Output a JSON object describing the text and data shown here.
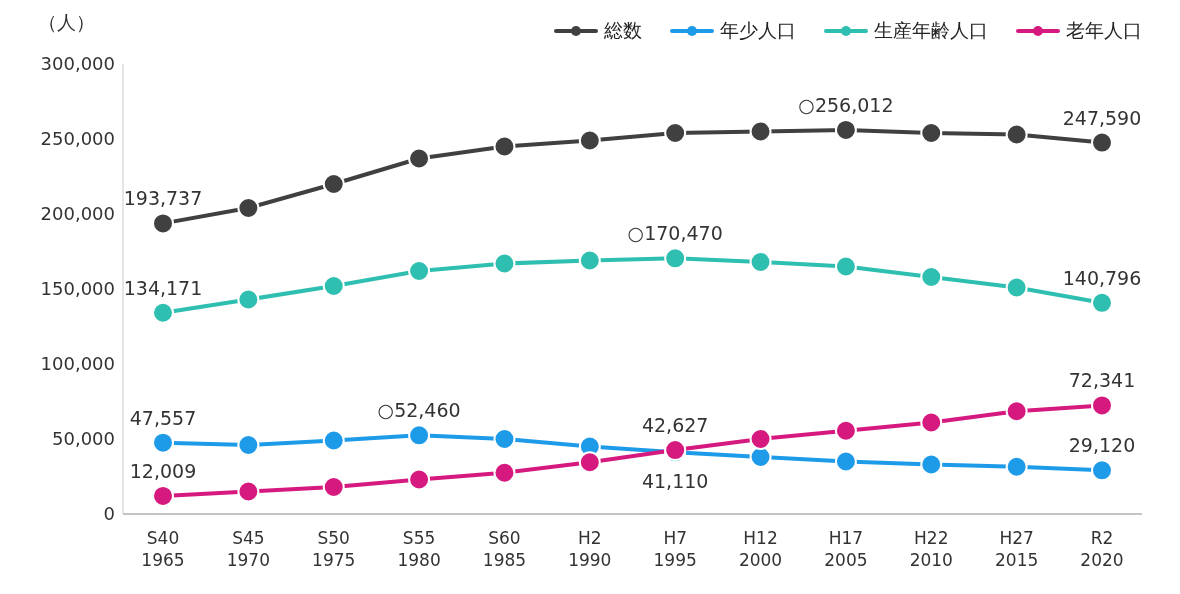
{
  "chart_data": {
    "type": "line",
    "ylabel": "（人）",
    "categories": [
      "S40\n1965",
      "S45\n1970",
      "S50\n1975",
      "S55\n1980",
      "S60\n1985",
      "H2\n1990",
      "H7\n1995",
      "H12\n2000",
      "H17\n2005",
      "H22\n2010",
      "H27\n2015",
      "R2\n2020"
    ],
    "series": [
      {
        "name": "総数",
        "color": "#404040",
        "values": [
          193737,
          204000,
          220000,
          237000,
          245000,
          249000,
          254000,
          255000,
          256012,
          254000,
          253000,
          247590
        ],
        "value_labels": [
          "193,737",
          null,
          null,
          null,
          null,
          null,
          null,
          null,
          "○256,012",
          null,
          null,
          "247,590"
        ]
      },
      {
        "name": "年少人口",
        "color": "#1e9be8",
        "values": [
          47557,
          46000,
          49000,
          52460,
          50000,
          45000,
          41110,
          38000,
          35000,
          33000,
          31500,
          29120
        ],
        "value_labels": [
          "47,557",
          null,
          null,
          "○52,460",
          null,
          null,
          "41,110",
          null,
          null,
          null,
          null,
          "29,120"
        ]
      },
      {
        "name": "生産年齢人口",
        "color": "#2ebfb0",
        "values": [
          134171,
          143000,
          152000,
          162000,
          167000,
          169000,
          170470,
          168000,
          165000,
          158000,
          151000,
          140796
        ],
        "value_labels": [
          "134,171",
          null,
          null,
          null,
          null,
          null,
          "○170,470",
          null,
          null,
          null,
          null,
          "140,796"
        ]
      },
      {
        "name": "老年人口",
        "color": "#d6197f",
        "values": [
          12009,
          15000,
          18000,
          23000,
          27500,
          34500,
          42627,
          50000,
          55500,
          61000,
          68500,
          72341
        ],
        "value_labels": [
          "12,009",
          null,
          null,
          null,
          null,
          null,
          "42,627",
          null,
          null,
          null,
          null,
          "72,341"
        ]
      }
    ],
    "ylim": [
      0,
      300000
    ],
    "yticks": [
      0,
      {
        "value": 50000,
        "label": "50,000"
      },
      {
        "value": 100000,
        "label": "100,000"
      },
      {
        "value": 150000,
        "label": "150,000"
      },
      {
        "value": 200000,
        "label": "200,000"
      },
      {
        "value": 250000,
        "label": "250,000"
      },
      {
        "value": 300000,
        "label": "300,000"
      }
    ],
    "grid": false,
    "legend": "top right",
    "marker": "circle",
    "line_style": "solid"
  }
}
